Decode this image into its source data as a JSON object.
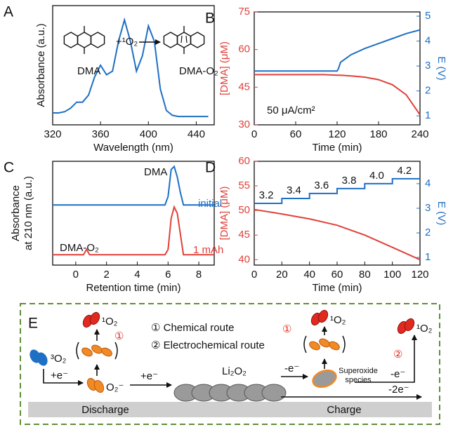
{
  "chart_data": [
    {
      "type": "line",
      "panel": "A",
      "xlabel": "Wavelength (nm)",
      "ylabel": "Absorbance (a.u.)",
      "xlim": [
        320,
        455
      ],
      "xticks": [
        320,
        360,
        400,
        440
      ],
      "ylim": [
        0,
        1
      ],
      "annotations": [
        "DMA",
        "+¹O₂",
        "DMA-O₂"
      ],
      "x": [
        320,
        325,
        330,
        335,
        340,
        345,
        350,
        355,
        360,
        365,
        370,
        375,
        380,
        385,
        390,
        395,
        400,
        405,
        410,
        415,
        420,
        425,
        430,
        435,
        440,
        445,
        450
      ],
      "series": [
        {
          "color": "#1f6fc4",
          "values": [
            0.1,
            0.1,
            0.11,
            0.14,
            0.19,
            0.19,
            0.25,
            0.4,
            0.5,
            0.42,
            0.45,
            0.7,
            0.88,
            0.7,
            0.45,
            0.58,
            0.83,
            0.7,
            0.3,
            0.12,
            0.08,
            0.07,
            0.07,
            0.07,
            0.07,
            0.07,
            0.07
          ]
        }
      ]
    },
    {
      "type": "line",
      "panel": "B",
      "xlabel": "Time (min)",
      "ylabel": "[DMA] (μM)",
      "y2label": "E (V)",
      "xlim": [
        0,
        240
      ],
      "xticks": [
        0,
        60,
        120,
        180,
        240
      ],
      "ylim": [
        30,
        75
      ],
      "yticks": [
        30,
        45,
        60,
        75
      ],
      "y2lim": [
        0.64,
        5.17
      ],
      "y2ticks": [
        1,
        2,
        3,
        4,
        5
      ],
      "annotations": [
        "50 μA/cm²"
      ],
      "x": [
        0,
        20,
        40,
        60,
        80,
        100,
        120,
        122,
        125,
        140,
        160,
        180,
        200,
        220,
        240
      ],
      "series": [
        {
          "color": "#e0413a",
          "values": [
            50,
            50,
            50,
            50,
            50,
            50,
            49.8,
            49.8,
            49.8,
            49.5,
            49,
            48,
            46,
            42,
            34
          ]
        },
        {
          "color": "#1f6fc4",
          "axis": "y2",
          "values": [
            2.8,
            2.8,
            2.8,
            2.8,
            2.8,
            2.8,
            2.8,
            2.9,
            3.15,
            3.45,
            3.7,
            3.9,
            4.1,
            4.3,
            4.45
          ]
        }
      ]
    },
    {
      "type": "line",
      "panel": "C",
      "xlabel": "Retention time (min)",
      "ylabel": [
        "Absorbance",
        "at 210 nm (a.u.)"
      ],
      "xlim": [
        -1.5,
        9
      ],
      "xticks": [
        0,
        2,
        4,
        6,
        8
      ],
      "ylim": [
        0,
        1
      ],
      "annotations": [
        "DMA",
        "DMA-O₂"
      ],
      "x": [
        -1.5,
        0,
        0.5,
        0.7,
        0.9,
        2,
        4,
        5.8,
        6.0,
        6.2,
        6.4,
        6.6,
        6.8,
        7.0,
        8,
        9
      ],
      "series": [
        {
          "name": "initial",
          "color": "#1f6fc4",
          "values": [
            0.58,
            0.58,
            0.58,
            0.58,
            0.58,
            0.58,
            0.58,
            0.58,
            0.66,
            0.92,
            0.95,
            0.85,
            0.7,
            0.58,
            0.58,
            0.58
          ]
        },
        {
          "name": "1 mAh",
          "color": "#e0413a",
          "values": [
            0.1,
            0.1,
            0.1,
            0.15,
            0.1,
            0.1,
            0.1,
            0.1,
            0.15,
            0.45,
            0.56,
            0.5,
            0.3,
            0.1,
            0.1,
            0.1
          ]
        }
      ]
    },
    {
      "type": "line",
      "panel": "D",
      "xlabel": "Time (min)",
      "ylabel": "[DMA] (μM)",
      "y2label": "E (V)",
      "xlim": [
        0,
        120
      ],
      "xticks": [
        0,
        20,
        40,
        60,
        80,
        100,
        120
      ],
      "ylim": [
        38.9,
        60
      ],
      "yticks": [
        40,
        45,
        50,
        55,
        60
      ],
      "y2lim": [
        0.69,
        4.91
      ],
      "y2ticks": [
        1,
        2,
        3,
        4
      ],
      "annotations": [
        "3.2",
        "3.4",
        "3.6",
        "3.8",
        "4.0",
        "4.2"
      ],
      "x": [
        0,
        20,
        20,
        40,
        40,
        60,
        60,
        80,
        80,
        100,
        100,
        120
      ],
      "series": [
        {
          "color": "#e0413a",
          "values": [
            50.2,
            49.3,
            49.3,
            48.3,
            48.3,
            47,
            47,
            45,
            45,
            42.5,
            42.5,
            40
          ]
        },
        {
          "color": "#1f6fc4",
          "axis": "y2",
          "values": [
            3.2,
            3.2,
            3.4,
            3.4,
            3.6,
            3.6,
            3.8,
            3.8,
            4.0,
            4.0,
            4.2,
            4.2
          ]
        }
      ]
    }
  ],
  "diagram": {
    "panel": "E",
    "o2_triplet": "³O₂",
    "reduction1": "+e⁻",
    "superoxide": "O₂⁻",
    "reduction2": "+e⁻",
    "peroxide": "Li₂O₂",
    "oxidation1": "-e⁻",
    "superoxide_species": [
      "Superoxide",
      "species"
    ],
    "oxidation2": "-e⁻",
    "oxidation3": "-2e⁻",
    "singlet_1": "¹O₂",
    "singlet_2": "¹O₂",
    "singlet_3": "¹O₂",
    "route_mark_1": "①",
    "route_mark_2": "①",
    "route_mark_3": "②",
    "legend": [
      "① Chemical route",
      "② Electrochemical route"
    ],
    "discharge": "Discharge",
    "charge": "Charge"
  }
}
